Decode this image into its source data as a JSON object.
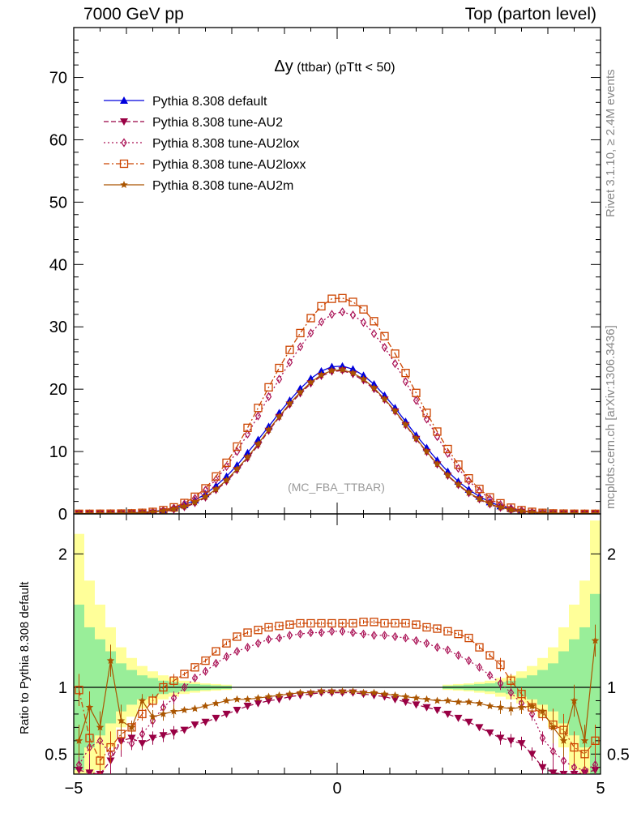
{
  "header": {
    "left": "7000 GeV pp",
    "right": "Top (parton level)"
  },
  "side_labels": {
    "rivet": "Rivet 3.1.10, ≥ 2.4M events",
    "mcplots": "mcplots.cern.ch [arXiv:1306.3436]"
  },
  "chart_data": [
    {
      "type": "line",
      "panel": "main",
      "title": "Δy (ttbar) (pTtt < 50)",
      "title_main": "Δy",
      "title_sub": " (ttbar) (pTtt < 50)",
      "watermark": "(MC_FBA_TTBAR)",
      "xlim": [
        -5,
        5
      ],
      "ylim": [
        0,
        78
      ],
      "yticks": [
        "0",
        "10",
        "20",
        "30",
        "40",
        "50",
        "60",
        "70"
      ],
      "yticks_values": [
        0,
        10,
        20,
        30,
        40,
        50,
        60,
        70
      ],
      "legend_position": "top-left",
      "x": [
        -4.9,
        -4.7,
        -4.5,
        -4.3,
        -4.1,
        -3.9,
        -3.7,
        -3.5,
        -3.3,
        -3.1,
        -2.9,
        -2.7,
        -2.5,
        -2.3,
        -2.1,
        -1.9,
        -1.7,
        -1.5,
        -1.3,
        -1.1,
        -0.9,
        -0.7,
        -0.5,
        -0.3,
        -0.1,
        0.1,
        0.3,
        0.5,
        0.7,
        0.9,
        1.1,
        1.3,
        1.5,
        1.7,
        1.9,
        2.1,
        2.3,
        2.5,
        2.7,
        2.9,
        3.1,
        3.3,
        3.5,
        3.7,
        3.9,
        4.1,
        4.3,
        4.5,
        4.7,
        4.9
      ],
      "series": [
        {
          "name": "Pythia 8.308 default",
          "color": "#0000dd",
          "marker": "triangle-up",
          "dash": "none",
          "values": [
            0.05,
            0.06,
            0.07,
            0.09,
            0.12,
            0.17,
            0.25,
            0.38,
            0.6,
            0.95,
            1.45,
            2.2,
            3.2,
            4.5,
            6.0,
            7.8,
            9.8,
            11.9,
            14.0,
            16.2,
            18.2,
            20.1,
            21.7,
            22.9,
            23.6,
            23.7,
            23.2,
            22.2,
            20.8,
            19.0,
            17.0,
            14.8,
            12.6,
            10.6,
            8.6,
            6.8,
            5.2,
            3.9,
            2.8,
            1.9,
            1.25,
            0.8,
            0.5,
            0.3,
            0.19,
            0.12,
            0.09,
            0.07,
            0.06,
            0.05
          ]
        },
        {
          "name": "Pythia 8.308 tune-AU2",
          "color": "#990044",
          "marker": "triangle-down",
          "dash": "6,3",
          "values": [
            0.02,
            0.02,
            0.03,
            0.04,
            0.05,
            0.07,
            0.12,
            0.2,
            0.38,
            0.65,
            1.05,
            1.7,
            2.6,
            3.8,
            5.2,
            7.0,
            8.9,
            11.0,
            13.3,
            15.5,
            17.5,
            19.3,
            20.9,
            22.1,
            22.8,
            23.0,
            22.4,
            21.4,
            20.0,
            18.3,
            16.4,
            14.2,
            12.0,
            9.9,
            7.9,
            6.1,
            4.6,
            3.3,
            2.3,
            1.5,
            0.95,
            0.55,
            0.3,
            0.16,
            0.08,
            0.05,
            0.04,
            0.03,
            0.02,
            0.02
          ]
        },
        {
          "name": "Pythia 8.308 tune-AU2lox",
          "color": "#aa1155",
          "marker": "diamond-open",
          "dash": "2,3",
          "values": [
            0.02,
            0.02,
            0.03,
            0.04,
            0.06,
            0.08,
            0.15,
            0.3,
            0.55,
            0.95,
            1.6,
            2.5,
            3.8,
            5.5,
            7.6,
            10.0,
            12.8,
            15.7,
            18.8,
            21.6,
            24.3,
            26.8,
            29.0,
            30.8,
            32.0,
            32.4,
            31.9,
            30.7,
            28.9,
            26.7,
            24.1,
            21.2,
            18.2,
            15.2,
            12.4,
            9.7,
            7.3,
            5.3,
            3.7,
            2.4,
            1.5,
            0.9,
            0.55,
            0.3,
            0.15,
            0.07,
            0.05,
            0.03,
            0.02,
            0.02
          ]
        },
        {
          "name": "Pythia 8.308 tune-AU2loxx",
          "color": "#cc4400",
          "marker": "square-open",
          "dash": "7,3,2,3",
          "values": [
            0.02,
            0.02,
            0.03,
            0.04,
            0.06,
            0.09,
            0.17,
            0.32,
            0.6,
            1.05,
            1.75,
            2.75,
            4.1,
            6.0,
            8.2,
            10.8,
            13.8,
            17.0,
            20.3,
            23.4,
            26.3,
            29.0,
            31.4,
            33.3,
            34.5,
            34.6,
            34.0,
            32.8,
            30.9,
            28.5,
            25.7,
            22.6,
            19.4,
            16.2,
            13.2,
            10.4,
            7.9,
            5.7,
            4.0,
            2.65,
            1.7,
            1.0,
            0.6,
            0.33,
            0.17,
            0.08,
            0.05,
            0.03,
            0.02,
            0.02
          ]
        },
        {
          "name": "Pythia 8.308 tune-AU2m",
          "color": "#aa5500",
          "marker": "star",
          "dash": "none",
          "values": [
            0.03,
            0.03,
            0.05,
            0.06,
            0.08,
            0.11,
            0.19,
            0.3,
            0.48,
            0.78,
            1.2,
            1.85,
            2.75,
            3.95,
            5.4,
            7.2,
            9.1,
            11.2,
            13.5,
            15.6,
            17.7,
            19.5,
            21.1,
            22.3,
            23.0,
            23.1,
            22.6,
            21.6,
            20.2,
            18.4,
            16.5,
            14.3,
            12.1,
            10.0,
            8.0,
            6.2,
            4.7,
            3.4,
            2.4,
            1.6,
            1.05,
            0.65,
            0.4,
            0.24,
            0.14,
            0.09,
            0.06,
            0.05,
            0.04,
            0.03
          ]
        }
      ]
    },
    {
      "type": "line",
      "panel": "ratio",
      "ylabel": "Ratio to Pythia 8.308 default",
      "xlim": [
        -5,
        5
      ],
      "ylim": [
        0.35,
        2.3
      ],
      "xticks": [
        "−5",
        "0",
        "5"
      ],
      "xticks_values": [
        -5,
        0,
        5
      ],
      "yticks": [
        "0.5",
        "1",
        "2"
      ],
      "yticks_values": [
        0.5,
        1,
        2
      ],
      "reference": 1,
      "band_x": [
        -4.9,
        -4.7,
        -4.5,
        -4.3,
        -4.1,
        -3.9,
        -3.7,
        -3.5,
        -3.3,
        -3.1,
        -2.9,
        -2.7,
        -2.5,
        -2.3,
        -2.1,
        2.1,
        2.3,
        2.5,
        2.7,
        2.9,
        3.1,
        3.3,
        3.5,
        3.7,
        3.9,
        4.1,
        4.3,
        4.5,
        4.7,
        4.9
      ],
      "band_inner": [
        0.62,
        0.45,
        0.36,
        0.27,
        0.18,
        0.13,
        0.09,
        0.07,
        0.05,
        0.04,
        0.03,
        0.025,
        0.02,
        0.015,
        0.012,
        0.012,
        0.015,
        0.02,
        0.025,
        0.03,
        0.04,
        0.05,
        0.07,
        0.09,
        0.13,
        0.18,
        0.27,
        0.36,
        0.45,
        0.7
      ],
      "band_outer": [
        1.15,
        0.8,
        0.62,
        0.45,
        0.3,
        0.22,
        0.16,
        0.12,
        0.09,
        0.07,
        0.05,
        0.04,
        0.03,
        0.025,
        0.02,
        0.02,
        0.025,
        0.03,
        0.04,
        0.05,
        0.07,
        0.09,
        0.12,
        0.16,
        0.22,
        0.3,
        0.45,
        0.62,
        0.8,
        1.25
      ],
      "x": [
        -4.9,
        -4.7,
        -4.5,
        -4.3,
        -4.1,
        -3.9,
        -3.7,
        -3.5,
        -3.3,
        -3.1,
        -2.9,
        -2.7,
        -2.5,
        -2.3,
        -2.1,
        -1.9,
        -1.7,
        -1.5,
        -1.3,
        -1.1,
        -0.9,
        -0.7,
        -0.5,
        -0.3,
        -0.1,
        0.1,
        0.3,
        0.5,
        0.7,
        0.9,
        1.1,
        1.3,
        1.5,
        1.7,
        1.9,
        2.1,
        2.3,
        2.5,
        2.7,
        2.9,
        3.1,
        3.3,
        3.5,
        3.7,
        3.9,
        4.1,
        4.3,
        4.5,
        4.7,
        4.9
      ],
      "series": [
        {
          "name": "Pythia 8.308 tune-AU2",
          "color": "#990044",
          "marker": "triangle-down",
          "dash": "6,3",
          "values": [
            0.38,
            0.36,
            0.35,
            0.45,
            0.6,
            0.62,
            0.58,
            0.62,
            0.64,
            0.66,
            0.68,
            0.72,
            0.74,
            0.77,
            0.8,
            0.83,
            0.86,
            0.88,
            0.9,
            0.91,
            0.93,
            0.94,
            0.95,
            0.96,
            0.96,
            0.96,
            0.96,
            0.95,
            0.94,
            0.93,
            0.91,
            0.89,
            0.87,
            0.85,
            0.83,
            0.8,
            0.77,
            0.74,
            0.7,
            0.66,
            0.62,
            0.6,
            0.58,
            0.5,
            0.4,
            0.36,
            0.35,
            0.35,
            0.36,
            0.38
          ]
        },
        {
          "name": "Pythia 8.308 tune-AU2lox",
          "color": "#aa1155",
          "marker": "diamond-open",
          "dash": "2,3",
          "values": [
            0.42,
            0.55,
            0.6,
            0.5,
            0.6,
            0.58,
            0.65,
            0.75,
            0.85,
            0.92,
            1.0,
            1.07,
            1.12,
            1.18,
            1.23,
            1.27,
            1.3,
            1.33,
            1.36,
            1.37,
            1.39,
            1.4,
            1.41,
            1.41,
            1.42,
            1.42,
            1.41,
            1.4,
            1.39,
            1.39,
            1.38,
            1.37,
            1.35,
            1.33,
            1.3,
            1.28,
            1.24,
            1.2,
            1.15,
            1.09,
            1.03,
            0.96,
            0.88,
            0.8,
            0.62,
            0.52,
            0.45,
            0.4,
            0.38,
            0.42
          ]
        },
        {
          "name": "Pythia 8.308 tune-AU2loxx",
          "color": "#cc4400",
          "marker": "square-open",
          "dash": "7,3,2,3",
          "values": [
            0.98,
            0.62,
            0.45,
            0.55,
            0.65,
            0.7,
            0.8,
            0.9,
            1.0,
            1.05,
            1.1,
            1.15,
            1.2,
            1.27,
            1.33,
            1.38,
            1.41,
            1.43,
            1.45,
            1.46,
            1.47,
            1.48,
            1.48,
            1.48,
            1.48,
            1.48,
            1.48,
            1.49,
            1.49,
            1.48,
            1.48,
            1.48,
            1.47,
            1.45,
            1.44,
            1.42,
            1.4,
            1.37,
            1.3,
            1.24,
            1.17,
            1.05,
            0.95,
            0.85,
            0.8,
            0.72,
            0.68,
            0.55,
            0.5,
            0.6
          ]
        },
        {
          "name": "Pythia 8.308 tune-AU2m",
          "color": "#aa5500",
          "marker": "star",
          "dash": "none",
          "values": [
            0.6,
            0.85,
            0.7,
            1.2,
            0.75,
            0.7,
            0.9,
            0.78,
            0.8,
            0.82,
            0.83,
            0.84,
            0.86,
            0.88,
            0.9,
            0.91,
            0.91,
            0.92,
            0.93,
            0.94,
            0.95,
            0.96,
            0.96,
            0.97,
            0.97,
            0.97,
            0.97,
            0.96,
            0.96,
            0.95,
            0.94,
            0.93,
            0.92,
            0.91,
            0.9,
            0.9,
            0.89,
            0.89,
            0.88,
            0.86,
            0.85,
            0.84,
            0.85,
            0.86,
            0.82,
            0.7,
            0.6,
            0.9,
            0.6,
            1.35
          ]
        }
      ]
    }
  ]
}
